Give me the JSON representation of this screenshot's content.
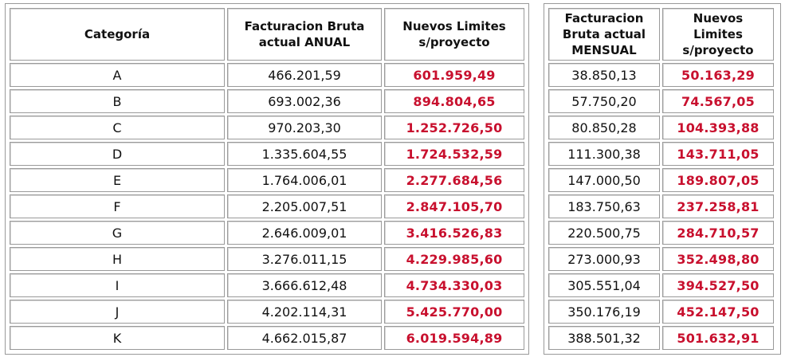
{
  "headers": {
    "categoria": "Categoría",
    "bruta_anual": [
      "Facturacion Bruta",
      "actual ANUAL"
    ],
    "limites_anual": [
      "Nuevos Limites",
      "s/proyecto"
    ],
    "bruta_mensual": [
      "Facturacion",
      "Bruta actual",
      "MENSUAL"
    ],
    "limites_mensual": [
      "Nuevos",
      "Limites",
      "s/proyecto"
    ]
  },
  "rows": [
    {
      "cat": "A",
      "anual": "466.201,59",
      "lim_anual": "601.959,49",
      "mensual": "38.850,13",
      "lim_mensual": "50.163,29"
    },
    {
      "cat": "B",
      "anual": "693.002,36",
      "lim_anual": "894.804,65",
      "mensual": "57.750,20",
      "lim_mensual": "74.567,05"
    },
    {
      "cat": "C",
      "anual": "970.203,30",
      "lim_anual": "1.252.726,50",
      "mensual": "80.850,28",
      "lim_mensual": "104.393,88"
    },
    {
      "cat": "D",
      "anual": "1.335.604,55",
      "lim_anual": "1.724.532,59",
      "mensual": "111.300,38",
      "lim_mensual": "143.711,05"
    },
    {
      "cat": "E",
      "anual": "1.764.006,01",
      "lim_anual": "2.277.684,56",
      "mensual": "147.000,50",
      "lim_mensual": "189.807,05"
    },
    {
      "cat": "F",
      "anual": "2.205.007,51",
      "lim_anual": "2.847.105,70",
      "mensual": "183.750,63",
      "lim_mensual": "237.258,81"
    },
    {
      "cat": "G",
      "anual": "2.646.009,01",
      "lim_anual": "3.416.526,83",
      "mensual": "220.500,75",
      "lim_mensual": "284.710,57"
    },
    {
      "cat": "H",
      "anual": "3.276.011,15",
      "lim_anual": "4.229.985,60",
      "mensual": "273.000,93",
      "lim_mensual": "352.498,80"
    },
    {
      "cat": "I",
      "anual": "3.666.612,48",
      "lim_anual": "4.734.330,03",
      "mensual": "305.551,04",
      "lim_mensual": "394.527,50"
    },
    {
      "cat": "J",
      "anual": "4.202.114,31",
      "lim_anual": "5.425.770,00",
      "mensual": "350.176,19",
      "lim_mensual": "452.147,50"
    },
    {
      "cat": "K",
      "anual": "4.662.015,87",
      "lim_anual": "6.019.594,89",
      "mensual": "388.501,32",
      "lim_mensual": "501.632,91"
    }
  ],
  "colors": {
    "highlight": "#c8102e",
    "border": "#9a9a9a"
  }
}
